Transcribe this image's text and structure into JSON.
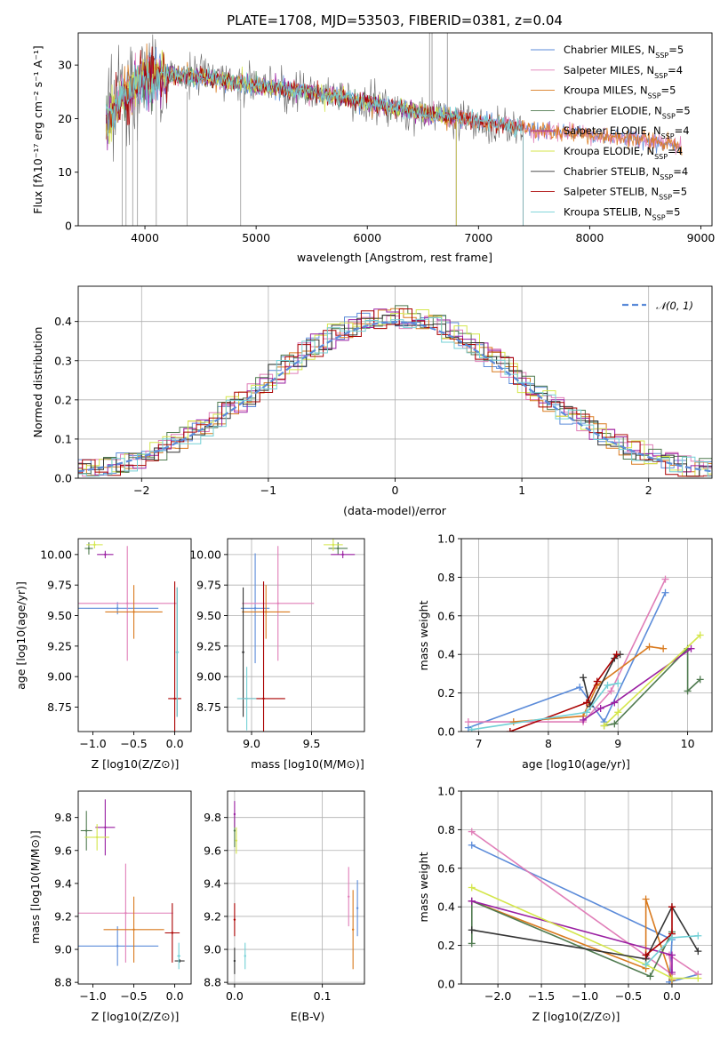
{
  "colors": {
    "series": [
      "#5b8bd9",
      "#e07eb8",
      "#d97a1e",
      "#4f7a4f",
      "#9a1fa2",
      "#d4e64a",
      "#333333",
      "#aa0000",
      "#72d0d6"
    ],
    "normal_curve": "#5b8bd9",
    "grid": "#b0b0b0"
  },
  "chart_data": [
    {
      "id": "spectrum",
      "type": "line",
      "title": "PLATE=1708, MJD=53503, FIBERID=0381, z=0.04",
      "xlabel": "wavelength [Angstrom, rest frame]",
      "ylabel": "Flux [fλ10⁻¹⁷ erg cm⁻² s⁻¹ A⁻¹]",
      "xlim": [
        3400,
        9100
      ],
      "ylim": [
        0,
        36
      ],
      "xticks": [
        4000,
        5000,
        6000,
        7000,
        8000,
        9000
      ],
      "yticks": [
        0,
        10,
        20,
        30
      ],
      "grid": false,
      "legend_position": "top-right",
      "legend": [
        "Chabrier MILES, N_SSP=5",
        "Salpeter MILES, N_SSP=4",
        "Kroupa MILES, N_SSP=5",
        "Chabrier ELODIE, N_SSP=5",
        "Salpeter ELODIE, N_SSP=4",
        "Kroupa ELODIE, N_SSP=4",
        "Chabrier STELIB, N_SSP=4",
        "Salpeter STELIB, N_SSP=5",
        "Kroupa STELIB, N_SSP=5"
      ],
      "observed_continuum": {
        "x": [
          3650,
          3800,
          3950,
          4100,
          4500,
          5000,
          5500,
          6000,
          6500,
          7000,
          7500,
          8000,
          8500,
          8830
        ],
        "y": [
          20,
          24,
          27,
          28,
          28,
          26,
          25,
          23,
          21,
          19.5,
          18,
          17,
          16,
          15
        ]
      },
      "ELODIE_end_wavelength": 6800,
      "STELIB_end_wavelength": 7400
    },
    {
      "id": "residual_hist",
      "type": "histogram",
      "xlabel": "(data-model)/error",
      "ylabel": "Normed distribution",
      "xlim": [
        -2.5,
        2.5
      ],
      "ylim": [
        0,
        0.49
      ],
      "xticks": [
        -2,
        -1,
        0,
        1,
        2
      ],
      "yticks": [
        0.0,
        0.1,
        0.2,
        0.3,
        0.4
      ],
      "grid": true,
      "legend_position": "top-right",
      "legend": [
        "N(0, 1)"
      ],
      "reference_curve": "normal(0,1)"
    },
    {
      "id": "age_vs_Z",
      "type": "scatter",
      "xlabel": "Z [log10(Z/Z⊙)]",
      "ylabel": "age  [log10(age/yr)]",
      "xlim": [
        -1.18,
        0.2
      ],
      "ylim": [
        8.55,
        10.13
      ],
      "xticks": [
        -1.0,
        -0.5,
        0.0
      ],
      "yticks": [
        8.75,
        9.0,
        9.25,
        9.5,
        9.75,
        10.0
      ],
      "grid": false,
      "points": [
        {
          "series": 0,
          "x": -0.7,
          "y": 9.56,
          "xerr": 0.5,
          "yerr": 0.05
        },
        {
          "series": 1,
          "x": -0.58,
          "y": 9.6,
          "xerr": 0.6,
          "yerr": 0.47
        },
        {
          "series": 2,
          "x": -0.5,
          "y": 9.53,
          "xerr": 0.35,
          "yerr": 0.22
        },
        {
          "series": 3,
          "x": -1.05,
          "y": 10.05,
          "xerr": 0.05,
          "yerr": 0.05
        },
        {
          "series": 4,
          "x": -0.85,
          "y": 10.0,
          "xerr": 0.1,
          "yerr": 0.03
        },
        {
          "series": 5,
          "x": -0.98,
          "y": 10.08,
          "xerr": 0.1,
          "yerr": 0.03
        },
        {
          "series": 6,
          "x": 0.03,
          "y": 9.2,
          "xerr": 0.01,
          "yerr": 0.53
        },
        {
          "series": 7,
          "x": 0.0,
          "y": 8.82,
          "xerr": 0.08,
          "yerr": 0.96
        },
        {
          "series": 8,
          "x": 0.03,
          "y": 9.2,
          "xerr": 0.02,
          "yerr": 0.53
        }
      ]
    },
    {
      "id": "age_vs_mass",
      "type": "scatter",
      "xlabel": "mass [log10(M/M⊙)]",
      "ylabel": "",
      "xlim": [
        8.8,
        9.94
      ],
      "ylim": [
        8.55,
        10.13
      ],
      "xticks": [
        9.0,
        9.5
      ],
      "yticks": [
        8.75,
        9.0,
        9.25,
        9.5,
        9.75,
        10.0
      ],
      "grid": true,
      "points": [
        {
          "series": 0,
          "x": 9.03,
          "y": 9.56,
          "xerr": 0.12,
          "yerr": 0.45
        },
        {
          "series": 1,
          "x": 9.22,
          "y": 9.6,
          "xerr": 0.3,
          "yerr": 0.47
        },
        {
          "series": 2,
          "x": 9.12,
          "y": 9.53,
          "xerr": 0.2,
          "yerr": 0.22
        },
        {
          "series": 3,
          "x": 9.72,
          "y": 10.05,
          "xerr": 0.08,
          "yerr": 0.05
        },
        {
          "series": 4,
          "x": 9.76,
          "y": 10.0,
          "xerr": 0.1,
          "yerr": 0.03
        },
        {
          "series": 5,
          "x": 9.68,
          "y": 10.08,
          "xerr": 0.08,
          "yerr": 0.05
        },
        {
          "series": 6,
          "x": 8.93,
          "y": 9.2,
          "xerr": 0.01,
          "yerr": 0.53
        },
        {
          "series": 7,
          "x": 9.1,
          "y": 8.82,
          "xerr": 0.18,
          "yerr": 0.96
        },
        {
          "series": 8,
          "x": 8.96,
          "y": 8.82,
          "xerr": 0.08,
          "yerr": 0.26
        }
      ]
    },
    {
      "id": "weight_vs_age",
      "type": "line",
      "xlabel": "age  [log10(age/yr)]",
      "ylabel": "mass weight",
      "xlim": [
        6.75,
        10.35
      ],
      "ylim": [
        0,
        1.0
      ],
      "xticks": [
        7,
        8,
        9,
        10
      ],
      "yticks": [
        0.0,
        0.2,
        0.4,
        0.6,
        0.8,
        1.0
      ],
      "grid": true,
      "series": [
        {
          "series": 0,
          "x": [
            6.85,
            8.45,
            8.8,
            9.68
          ],
          "y": [
            0.02,
            0.23,
            0.05,
            0.72
          ]
        },
        {
          "series": 1,
          "x": [
            6.85,
            8.5,
            8.9,
            9.68
          ],
          "y": [
            0.05,
            0.05,
            0.21,
            0.79
          ]
        },
        {
          "series": 2,
          "x": [
            7.5,
            8.5,
            8.7,
            9.45,
            9.65
          ],
          "y": [
            0.05,
            0.08,
            0.24,
            0.44,
            0.43
          ]
        },
        {
          "series": 3,
          "x": [
            8.8,
            8.95,
            10.0,
            10.0,
            10.18
          ],
          "y": [
            0.03,
            0.04,
            0.43,
            0.21,
            0.27
          ]
        },
        {
          "series": 4,
          "x": [
            8.5,
            8.75,
            8.95,
            10.05
          ],
          "y": [
            0.06,
            0.12,
            0.15,
            0.43
          ]
        },
        {
          "series": 5,
          "x": [
            8.8,
            9.0,
            10.18
          ],
          "y": [
            0.03,
            0.1,
            0.5
          ]
        },
        {
          "series": 6,
          "x": [
            8.5,
            8.6,
            8.95,
            9.03
          ],
          "y": [
            0.28,
            0.13,
            0.38,
            0.4
          ]
        },
        {
          "series": 7,
          "x": [
            7.45,
            8.55,
            8.7,
            8.98
          ],
          "y": [
            0.0,
            0.15,
            0.26,
            0.4
          ]
        },
        {
          "series": 8,
          "x": [
            6.9,
            8.55,
            8.85,
            9.0
          ],
          "y": [
            0.01,
            0.1,
            0.24,
            0.25
          ]
        }
      ]
    },
    {
      "id": "mass_vs_Z",
      "type": "scatter",
      "xlabel": "Z [log10(Z/Z⊙)]",
      "ylabel": "mass [log10(M/M⊙)]",
      "xlim": [
        -1.18,
        0.2
      ],
      "ylim": [
        8.79,
        9.96
      ],
      "xticks": [
        -1.0,
        -0.5,
        0.0
      ],
      "yticks": [
        8.8,
        9.0,
        9.2,
        9.4,
        9.6,
        9.8
      ],
      "grid": false,
      "points": [
        {
          "series": 0,
          "x": -0.7,
          "y": 9.02,
          "xerr": 0.5,
          "yerr": 0.12
        },
        {
          "series": 1,
          "x": -0.6,
          "y": 9.22,
          "xerr": 0.58,
          "yerr": 0.3
        },
        {
          "series": 2,
          "x": -0.5,
          "y": 9.12,
          "xerr": 0.37,
          "yerr": 0.2
        },
        {
          "series": 3,
          "x": -1.08,
          "y": 9.72,
          "xerr": 0.07,
          "yerr": 0.12
        },
        {
          "series": 4,
          "x": -0.85,
          "y": 9.74,
          "xerr": 0.12,
          "yerr": 0.17
        },
        {
          "series": 5,
          "x": -0.95,
          "y": 9.68,
          "xerr": 0.15,
          "yerr": 0.08
        },
        {
          "series": 6,
          "x": 0.06,
          "y": 8.93,
          "xerr": 0.06,
          "yerr": 0.01
        },
        {
          "series": 7,
          "x": -0.03,
          "y": 9.1,
          "xerr": 0.09,
          "yerr": 0.18
        },
        {
          "series": 8,
          "x": 0.05,
          "y": 8.96,
          "xerr": 0.02,
          "yerr": 0.08
        }
      ]
    },
    {
      "id": "mass_vs_EBV",
      "type": "scatter",
      "xlabel": "E(B-V)",
      "ylabel": "",
      "xlim": [
        -0.008,
        0.148
      ],
      "ylim": [
        8.79,
        9.96
      ],
      "xticks": [
        0.0,
        0.1
      ],
      "yticks": [
        8.8,
        9.0,
        9.2,
        9.4,
        9.6,
        9.8
      ],
      "grid": true,
      "points": [
        {
          "series": 0,
          "x": 0.14,
          "y": 9.25,
          "xerr": 0.0,
          "yerr": 0.17
        },
        {
          "series": 1,
          "x": 0.13,
          "y": 9.32,
          "xerr": 0.0,
          "yerr": 0.18
        },
        {
          "series": 2,
          "x": 0.135,
          "y": 9.12,
          "xerr": 0.0,
          "yerr": 0.24
        },
        {
          "series": 3,
          "x": 0.0,
          "y": 9.72,
          "xerr": 0.0,
          "yerr": 0.1
        },
        {
          "series": 4,
          "x": 0.0,
          "y": 9.82,
          "xerr": 0.0,
          "yerr": 0.08
        },
        {
          "series": 5,
          "x": 0.002,
          "y": 9.66,
          "xerr": 0.0,
          "yerr": 0.08
        },
        {
          "series": 6,
          "x": 0.0,
          "y": 8.93,
          "xerr": 0.0,
          "yerr": 0.08
        },
        {
          "series": 7,
          "x": 0.0,
          "y": 9.18,
          "xerr": 0.0,
          "yerr": 0.1
        },
        {
          "series": 8,
          "x": 0.012,
          "y": 8.96,
          "xerr": 0.0,
          "yerr": 0.08
        }
      ]
    },
    {
      "id": "weight_vs_Z",
      "type": "line",
      "xlabel": "Z [log10(Z/Z⊙)]",
      "ylabel": "mass weight",
      "xlim": [
        -2.42,
        0.46
      ],
      "ylim": [
        0,
        1.0
      ],
      "xticks": [
        -2.0,
        -1.5,
        -1.0,
        -0.5,
        0.0
      ],
      "yticks": [
        0.0,
        0.2,
        0.4,
        0.6,
        0.8,
        1.0
      ],
      "grid": true,
      "series": [
        {
          "series": 0,
          "x": [
            -2.3,
            0.0,
            -0.03,
            0.3
          ],
          "y": [
            0.72,
            0.23,
            0.01,
            0.05
          ]
        },
        {
          "series": 1,
          "x": [
            -2.3,
            0.0,
            -0.03,
            0.3
          ],
          "y": [
            0.79,
            0.05,
            0.15,
            0.05
          ]
        },
        {
          "series": 2,
          "x": [
            -2.3,
            -0.3,
            -0.3,
            0.0
          ],
          "y": [
            0.43,
            0.08,
            0.44,
            0.02
          ]
        },
        {
          "series": 3,
          "x": [
            -2.3,
            -2.3,
            -0.25,
            0.0
          ],
          "y": [
            0.21,
            0.43,
            0.04,
            0.27
          ]
        },
        {
          "series": 4,
          "x": [
            -2.3,
            0.0,
            0.0
          ],
          "y": [
            0.43,
            0.15,
            0.06
          ]
        },
        {
          "series": 5,
          "x": [
            -2.3,
            -0.3,
            0.0,
            0.3
          ],
          "y": [
            0.5,
            0.1,
            0.03,
            0.03
          ]
        },
        {
          "series": 6,
          "x": [
            -2.3,
            -0.3,
            0.0,
            0.3
          ],
          "y": [
            0.28,
            0.13,
            0.4,
            0.17
          ]
        },
        {
          "series": 7,
          "x": [
            -0.3,
            0.0,
            0.0
          ],
          "y": [
            0.15,
            0.26,
            0.4
          ]
        },
        {
          "series": 8,
          "x": [
            -0.3,
            0.0,
            0.3
          ],
          "y": [
            0.1,
            0.24,
            0.25
          ]
        }
      ]
    }
  ]
}
